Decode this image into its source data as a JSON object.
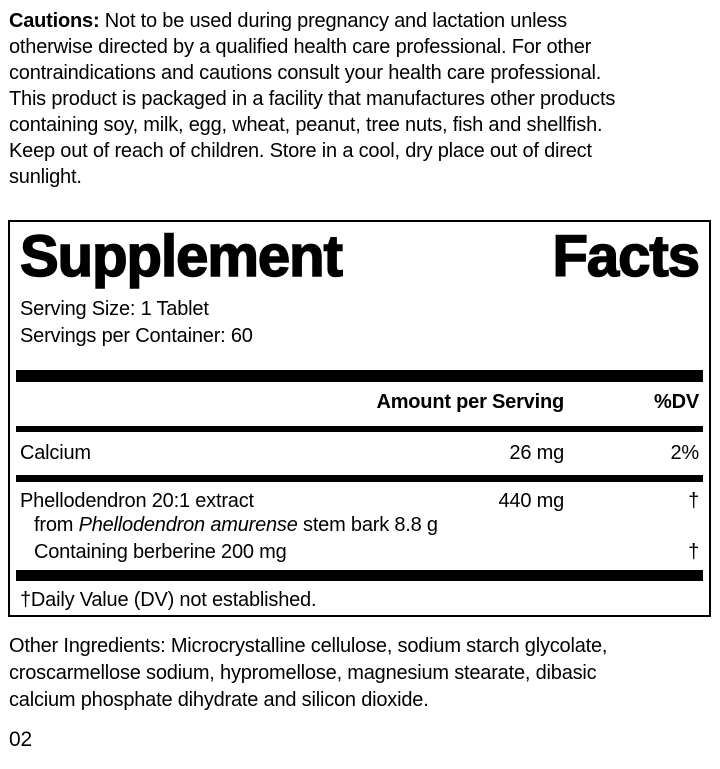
{
  "page": {
    "background": "#ffffff",
    "text_color": "#000000"
  },
  "cautions": {
    "label": "Cautions:",
    "line1_rest": "Not to be used during pregnancy and lactation unless",
    "lines": [
      "otherwise directed by a qualified health care professional. For other",
      "contraindications and cautions consult your health care professional.",
      "This product is packaged in a facility that manufactures other products",
      "containing soy, milk, egg, wheat, peanut, tree nuts, fish and shellfish.",
      "Keep out of reach of children. Store in a cool, dry place out of direct",
      "sunlight."
    ]
  },
  "supplement_facts": {
    "title_word1": "Supplement",
    "title_word2": "Facts",
    "serving_size": "Serving Size: 1 Tablet",
    "servings_per_container": "Servings per Container: 60",
    "header": {
      "amount": "Amount per Serving",
      "dv": "%DV"
    },
    "rows": {
      "calcium": {
        "name": "Calcium",
        "amount": "26 mg",
        "dv": "2%"
      },
      "phellodendron": {
        "name": "Phellodendron 20:1 extract",
        "amount": "440 mg",
        "dv": "†",
        "from_prefix": "from",
        "from_italic": "Phellodendron amurense",
        "from_suffix": "stem bark 8.8 g",
        "containing": "Containing berberine 200 mg",
        "containing_dv": "†"
      }
    },
    "footnote": "†Daily Value (DV) not established."
  },
  "other_ingredients": {
    "lines": [
      "Other Ingredients: Microcrystalline cellulose, sodium starch glycolate,",
      "croscarmellose sodium, hypromellose, magnesium stearate, dibasic",
      "calcium phosphate dihydrate and silicon dioxide."
    ]
  },
  "footer": {
    "code": "02"
  }
}
